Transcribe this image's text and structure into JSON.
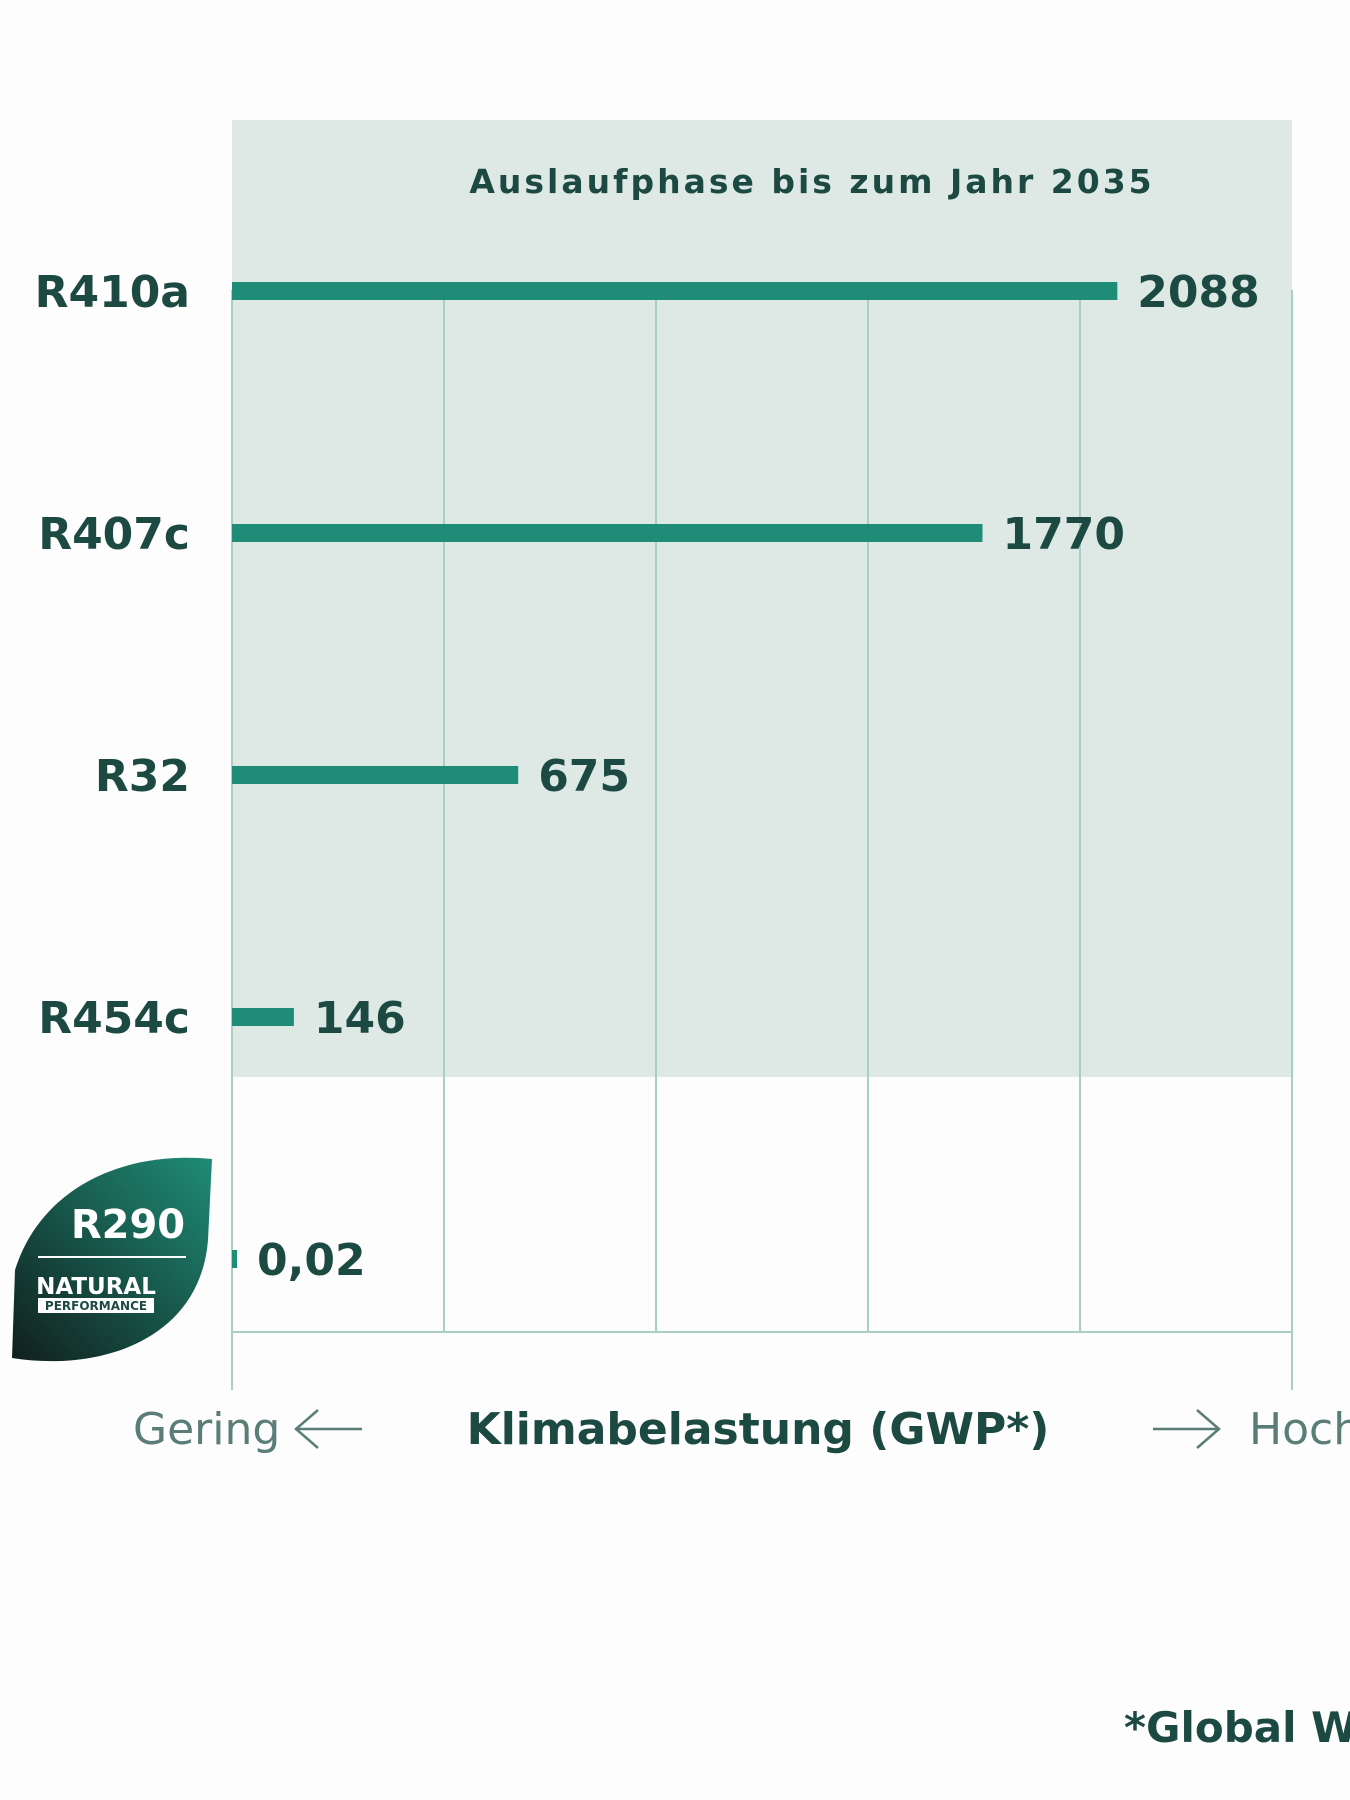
{
  "chart_data": {
    "type": "bar",
    "orientation": "horizontal",
    "categories": [
      "R410a",
      "R407c",
      "R32",
      "R454c",
      "R290"
    ],
    "values": [
      2088,
      1770,
      675,
      146,
      0.02
    ],
    "value_labels": [
      "2088",
      "1770",
      "675",
      "146",
      "0,02"
    ],
    "xlim": [
      0,
      2500
    ],
    "grid": true,
    "zone_title": "Auslaufphase bis zum Jahr 2035",
    "xlabel": "Klimabelastung (GWP*)",
    "axis_low": "Gering",
    "axis_high": "Hoch",
    "footnote": "*Global Wa",
    "badge": {
      "main": "R290",
      "line1": "NATURAL",
      "line2": "PERFORMANCE"
    },
    "colors": {
      "bar": "#1f8c77",
      "zone": "#dee9e5",
      "grid": "#a9cfc5",
      "text": "#1c4a43",
      "badge_dark": "#12312b",
      "badge_light": "#1f8c77"
    }
  }
}
